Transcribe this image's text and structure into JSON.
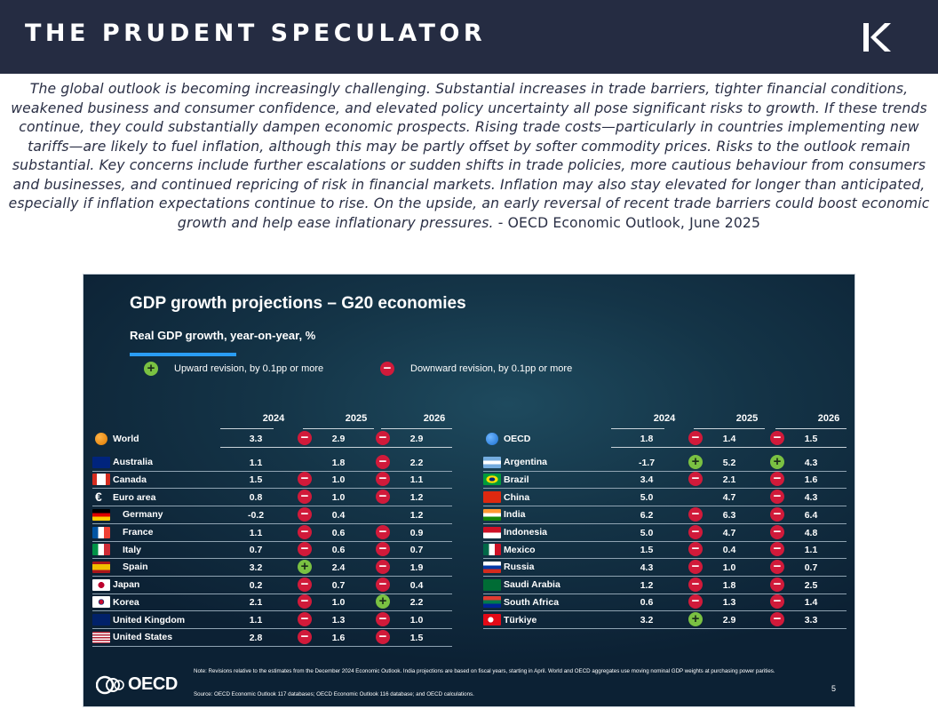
{
  "header": {
    "brand": "THE PRUDENT SPECULATOR",
    "logo_icon": "kc-monogram-icon"
  },
  "quote": {
    "text": "The global outlook is becoming increasingly challenging. Substantial increases in trade barriers, tighter financial conditions, weakened business and consumer confidence, and elevated policy uncertainty all pose significant risks to growth. If these trends continue, they could substantially dampen economic prospects. Rising trade costs—particularly in countries implementing new tariffs—are likely to fuel inflation, although this may be partly offset by softer commodity prices. Risks to the outlook remain substantial. Key concerns include further escalations or sudden shifts in trade policies, more cautious behaviour from consumers and businesses, and continued repricing of risk in financial markets. Inflation may also stay elevated for longer than anticipated, especially if inflation expectations continue to rise. On the upside, an early reversal of recent trade barriers could boost economic growth and help ease inflationary pressures.",
    "attribution": " - OECD Economic Outlook, June 2025"
  },
  "colors": {
    "header_bg": "#252c42",
    "minus": "#d11a3a",
    "plus": "#7ac142",
    "accent_line": "#2a9df4"
  },
  "chart_data": {
    "type": "table",
    "title": "GDP growth projections – G20 economies",
    "subtitle": "Real GDP growth, year-on-year, %",
    "legend": {
      "up": "Upward revision, by 0.1pp or more",
      "down": "Downward revision, by 0.1pp or more"
    },
    "years": [
      "2024",
      "2025",
      "2026"
    ],
    "left_rows": [
      {
        "name": "World",
        "v": [
          "3.3",
          "2.9",
          "2.9"
        ],
        "rev": [
          "",
          "down",
          "down"
        ],
        "flag": "globe-orange",
        "group": true
      },
      {
        "name": "Australia",
        "v": [
          "1.1",
          "1.8",
          "2.2"
        ],
        "rev": [
          "",
          "",
          "down"
        ],
        "flag": "au"
      },
      {
        "name": "Canada",
        "v": [
          "1.5",
          "1.0",
          "1.1"
        ],
        "rev": [
          "",
          "down",
          "down"
        ],
        "flag": "ca"
      },
      {
        "name": "Euro area",
        "v": [
          "0.8",
          "1.0",
          "1.2"
        ],
        "rev": [
          "",
          "down",
          "down"
        ],
        "flag": "euro"
      },
      {
        "name": "Germany",
        "v": [
          "-0.2",
          "0.4",
          "1.2"
        ],
        "rev": [
          "",
          "down",
          ""
        ],
        "flag": "de",
        "indent": true
      },
      {
        "name": "France",
        "v": [
          "1.1",
          "0.6",
          "0.9"
        ],
        "rev": [
          "",
          "down",
          "down"
        ],
        "flag": "fr",
        "indent": true
      },
      {
        "name": "Italy",
        "v": [
          "0.7",
          "0.6",
          "0.7"
        ],
        "rev": [
          "",
          "down",
          "down"
        ],
        "flag": "it",
        "indent": true
      },
      {
        "name": "Spain",
        "v": [
          "3.2",
          "2.4",
          "1.9"
        ],
        "rev": [
          "",
          "up",
          "down"
        ],
        "flag": "es",
        "indent": true
      },
      {
        "name": "Japan",
        "v": [
          "0.2",
          "0.7",
          "0.4"
        ],
        "rev": [
          "",
          "down",
          "down"
        ],
        "flag": "jp"
      },
      {
        "name": "Korea",
        "v": [
          "2.1",
          "1.0",
          "2.2"
        ],
        "rev": [
          "",
          "down",
          "up"
        ],
        "flag": "kr"
      },
      {
        "name": "United Kingdom",
        "v": [
          "1.1",
          "1.3",
          "1.0"
        ],
        "rev": [
          "",
          "down",
          "down"
        ],
        "flag": "gb"
      },
      {
        "name": "United States",
        "v": [
          "2.8",
          "1.6",
          "1.5"
        ],
        "rev": [
          "",
          "down",
          "down"
        ],
        "flag": "us"
      }
    ],
    "right_rows": [
      {
        "name": "OECD",
        "v": [
          "1.8",
          "1.4",
          "1.5"
        ],
        "rev": [
          "",
          "down",
          "down"
        ],
        "flag": "globe-blue",
        "group": true
      },
      {
        "name": "Argentina",
        "v": [
          "-1.7",
          "5.2",
          "4.3"
        ],
        "rev": [
          "",
          "up",
          "up"
        ],
        "flag": "ar"
      },
      {
        "name": "Brazil",
        "v": [
          "3.4",
          "2.1",
          "1.6"
        ],
        "rev": [
          "",
          "down",
          "down"
        ],
        "flag": "br"
      },
      {
        "name": "China",
        "v": [
          "5.0",
          "4.7",
          "4.3"
        ],
        "rev": [
          "",
          "",
          "down"
        ],
        "flag": "cn"
      },
      {
        "name": "India",
        "v": [
          "6.2",
          "6.3",
          "6.4"
        ],
        "rev": [
          "",
          "down",
          "down"
        ],
        "flag": "in"
      },
      {
        "name": "Indonesia",
        "v": [
          "5.0",
          "4.7",
          "4.8"
        ],
        "rev": [
          "",
          "down",
          "down"
        ],
        "flag": "id"
      },
      {
        "name": "Mexico",
        "v": [
          "1.5",
          "0.4",
          "1.1"
        ],
        "rev": [
          "",
          "down",
          "down"
        ],
        "flag": "mx"
      },
      {
        "name": "Russia",
        "v": [
          "4.3",
          "1.0",
          "0.7"
        ],
        "rev": [
          "",
          "down",
          "down"
        ],
        "flag": "ru"
      },
      {
        "name": "Saudi Arabia",
        "v": [
          "1.2",
          "1.8",
          "2.5"
        ],
        "rev": [
          "",
          "down",
          "down"
        ],
        "flag": "sa"
      },
      {
        "name": "South Africa",
        "v": [
          "0.6",
          "1.3",
          "1.4"
        ],
        "rev": [
          "",
          "down",
          "down"
        ],
        "flag": "za"
      },
      {
        "name": "Türkiye",
        "v": [
          "3.2",
          "2.9",
          "3.3"
        ],
        "rev": [
          "",
          "up",
          "down"
        ],
        "flag": "tr"
      }
    ],
    "note": "Note: Revisions relative to the estimates from the December 2024 Economic Outlook. India projections are based on fiscal years, starting in April. World and OECD aggregates use moving nominal GDP weights at purchasing power parities.",
    "source": "Source: OECD Economic Outlook 117 databases; OECD Economic Outlook 116 database; and OECD calculations.",
    "logo_text": "OECD",
    "page_number": "5"
  }
}
